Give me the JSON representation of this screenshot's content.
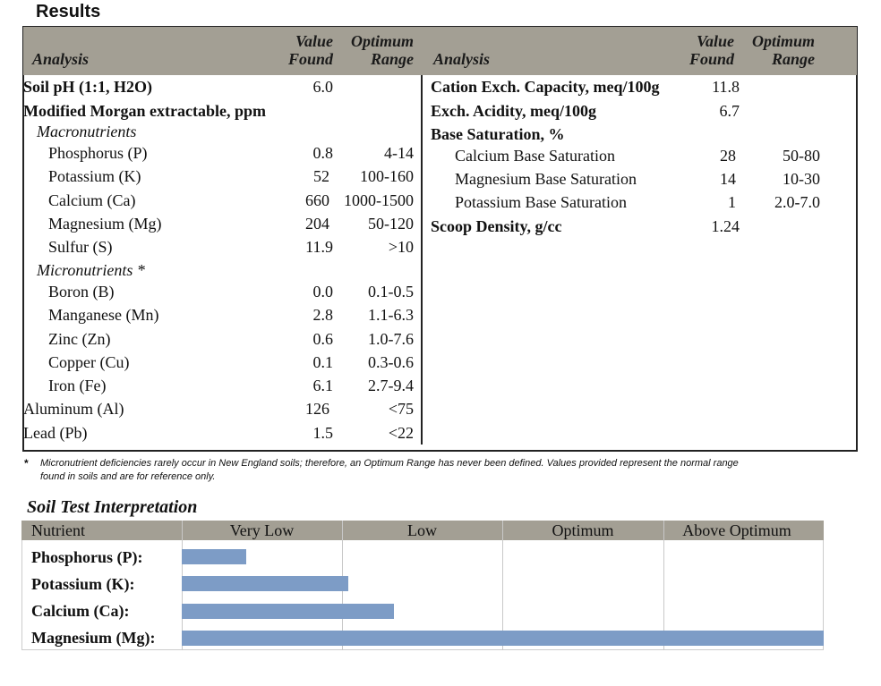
{
  "page": {
    "title": "Results"
  },
  "results_header": {
    "left": {
      "analysis": "Analysis",
      "value_found_1": "Value",
      "value_found_2": "Found",
      "optimum_1": "Optimum",
      "optimum_2": "Range"
    },
    "right": {
      "analysis": "Analysis",
      "value_found_1": "Value",
      "value_found_2": "Found",
      "optimum_1": "Optimum",
      "optimum_2": "Range"
    }
  },
  "left_rows": [
    {
      "label": "Soil pH (1:1, H2O)",
      "value": "6.0",
      "range": ""
    },
    {
      "label": "Modified Morgan extractable, ppm",
      "value": "",
      "range": ""
    },
    {
      "label": "Macronutrients",
      "value": "",
      "range": ""
    },
    {
      "label": "Phosphorus (P)",
      "value": "0.8",
      "range": "4-14"
    },
    {
      "label": "Potassium (K)",
      "value": "52",
      "range": "100-160"
    },
    {
      "label": "Calcium (Ca)",
      "value": "660",
      "range": "1000-1500"
    },
    {
      "label": "Magnesium (Mg)",
      "value": "204",
      "range": "50-120"
    },
    {
      "label": "Sulfur (S)",
      "value": "11.9",
      "range": ">10"
    },
    {
      "label": "Micronutrients *",
      "value": "",
      "range": ""
    },
    {
      "label": "Boron (B)",
      "value": "0.0",
      "range": "0.1-0.5"
    },
    {
      "label": "Manganese (Mn)",
      "value": "2.8",
      "range": "1.1-6.3"
    },
    {
      "label": "Zinc (Zn)",
      "value": "0.6",
      "range": "1.0-7.6"
    },
    {
      "label": "Copper (Cu)",
      "value": "0.1",
      "range": "0.3-0.6"
    },
    {
      "label": "Iron (Fe)",
      "value": "6.1",
      "range": "2.7-9.4"
    },
    {
      "label": "Aluminum (Al)",
      "value": "126",
      "range": "<75"
    },
    {
      "label": "Lead (Pb)",
      "value": "1.5",
      "range": "<22"
    }
  ],
  "right_rows": [
    {
      "label": "Cation Exch. Capacity, meq/100g",
      "value": "11.8",
      "range": ""
    },
    {
      "label": "Exch. Acidity, meq/100g",
      "value": "6.7",
      "range": ""
    },
    {
      "label": "Base Saturation, %",
      "value": "",
      "range": ""
    },
    {
      "label": "Calcium Base Saturation",
      "value": "28",
      "range": "50-80"
    },
    {
      "label": "Magnesium Base Saturation",
      "value": "14",
      "range": "10-30"
    },
    {
      "label": "Potassium Base Saturation",
      "value": "1",
      "range": "2.0-7.0"
    },
    {
      "label": "Scoop Density, g/cc",
      "value": "1.24",
      "range": ""
    }
  ],
  "footnote": {
    "marker": "*",
    "line1": "Micronutrient deficiencies rarely occur in New England soils; therefore, an Optimum Range has never been defined. Values provided represent the normal range",
    "line2": "found in soils and are for reference only."
  },
  "interpretation": {
    "title": "Soil Test Interpretation",
    "headers": [
      "Nutrient",
      "Very Low",
      "Low",
      "Optimum",
      "Above Optimum"
    ],
    "bar_color": "#7d9cc6",
    "rows": [
      {
        "label": "Phosphorus (P):",
        "level_fraction": 0.1
      },
      {
        "label": "Potassium (K):",
        "level_fraction": 0.26
      },
      {
        "label": "Calcium (Ca):",
        "level_fraction": 0.33
      },
      {
        "label": "Magnesium (Mg):",
        "level_fraction": 1.0
      }
    ]
  }
}
